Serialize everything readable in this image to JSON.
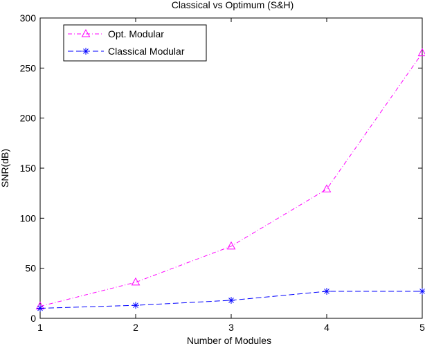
{
  "chart_data": {
    "type": "line",
    "title": "Classical vs Optimum (S&H)",
    "xlabel": "Number of Modules",
    "ylabel": "SNR(dB)",
    "x": [
      1,
      2,
      3,
      4,
      5
    ],
    "xlim": [
      1,
      5
    ],
    "ylim": [
      0,
      300
    ],
    "xticks": [
      1,
      2,
      3,
      4,
      5
    ],
    "yticks": [
      0,
      50,
      100,
      150,
      200,
      250,
      300
    ],
    "grid": false,
    "legend_position": "top-left",
    "series": [
      {
        "name": "Opt. Modular",
        "values": [
          12,
          36,
          72,
          129,
          265
        ],
        "color": "#ff00ff",
        "marker": "triangle",
        "line_style": "dash-dot"
      },
      {
        "name": "Classical Modular",
        "values": [
          10,
          13,
          18,
          27,
          27
        ],
        "color": "#0000ff",
        "marker": "asterisk",
        "line_style": "dashed"
      }
    ]
  }
}
